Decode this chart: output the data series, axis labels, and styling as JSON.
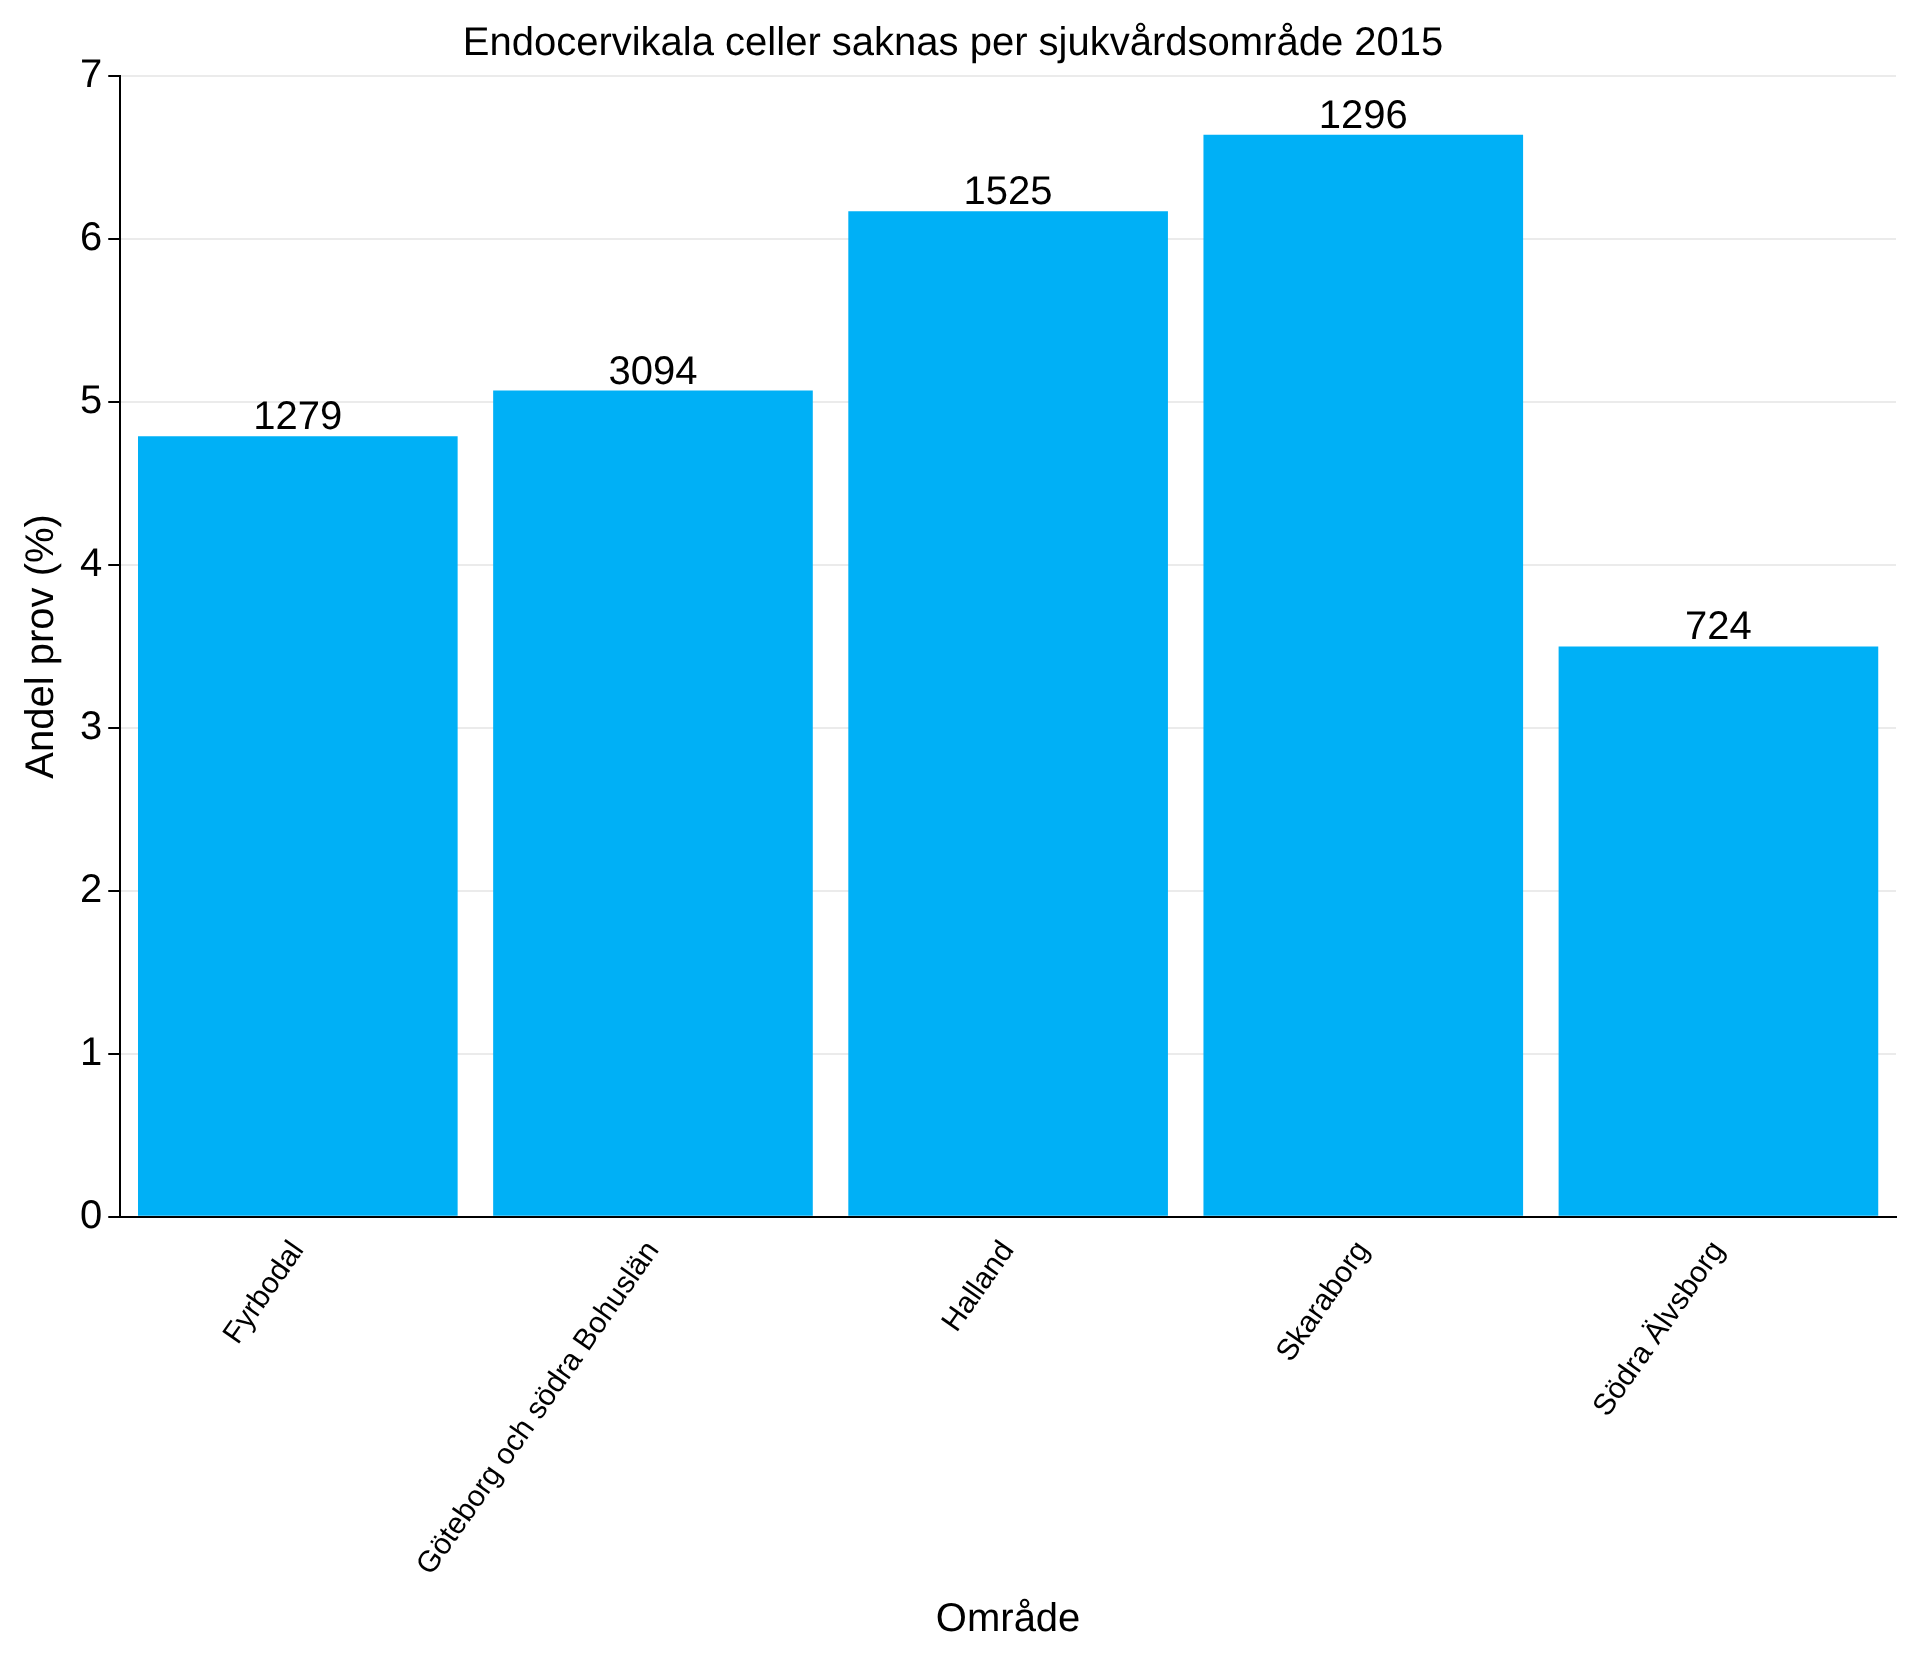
{
  "chart_data": {
    "type": "bar",
    "title": "Endocervikala celler saknas per sjukvårdsområde 2015",
    "xlabel": "Område",
    "ylabel": "Andel prov (%)",
    "categories": [
      "Fyrbodal",
      "Göteborg och södra Bohuslän",
      "Halland",
      "Skaraborg",
      "Södra Älvsborg"
    ],
    "values": [
      4.79,
      5.07,
      6.17,
      6.64,
      3.5
    ],
    "annotations": [
      {
        "text": "1279",
        "x": "Fyrbodal",
        "y": 4.79
      },
      {
        "text": "3094",
        "x": "Göteborg och södra Bohuslän",
        "y": 5.07
      },
      {
        "text": "1525",
        "x": "Halland",
        "y": 6.17
      },
      {
        "text": "1296",
        "x": "Skaraborg",
        "y": 6.64
      },
      {
        "text": "724",
        "x": "Södra Älvsborg",
        "y": 3.5
      }
    ],
    "color": "#00b0f6",
    "ylim": [
      0,
      7
    ],
    "yticks": [
      0,
      1,
      2,
      3,
      4,
      5,
      6,
      7
    ],
    "grid": "y"
  }
}
